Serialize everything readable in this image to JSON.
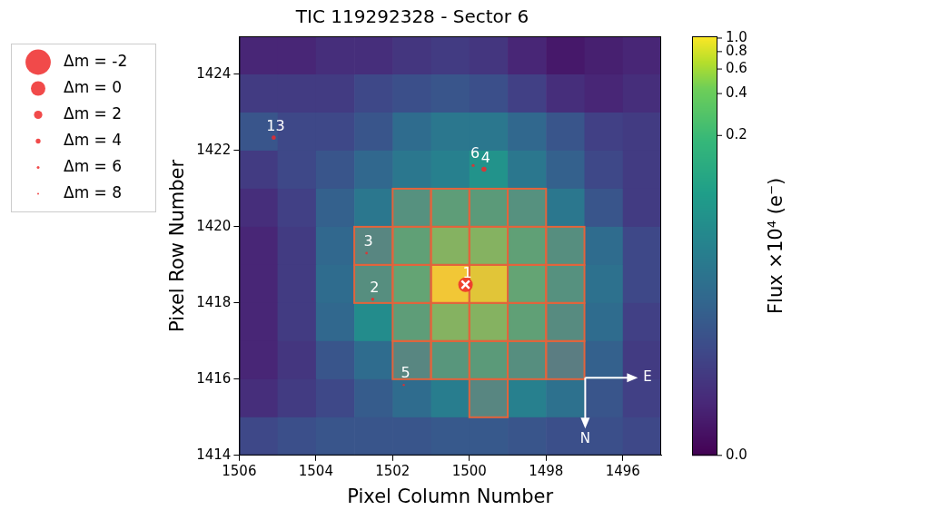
{
  "chart_data": {
    "type": "heatmap",
    "title": "TIC 119292328 - Sector 6",
    "x_label": "Pixel Column Number",
    "y_label": "Pixel Row Number",
    "xlim": [
      1506,
      1495
    ],
    "ylim": [
      1414,
      1425
    ],
    "xticks": [
      1506,
      1504,
      1502,
      1500,
      1498,
      1496
    ],
    "yticks": [
      1414,
      1416,
      1418,
      1420,
      1422,
      1424
    ],
    "grid": false,
    "cells": {
      "columns": [
        1505,
        1504,
        1503,
        1502,
        1501,
        1500,
        1499,
        1498,
        1497,
        1496,
        1495
      ],
      "rows": [
        1424,
        1423,
        1422,
        1421,
        1420,
        1419,
        1418,
        1417,
        1416,
        1415,
        1414
      ],
      "values": [
        [
          0.0013,
          0.0013,
          0.0018,
          0.0018,
          0.0025,
          0.003,
          0.0025,
          0.0013,
          0.0007,
          0.001,
          0.0013
        ],
        [
          0.003,
          0.003,
          0.003,
          0.0046,
          0.0059,
          0.007,
          0.0059,
          0.0036,
          0.0018,
          0.0013,
          0.0018
        ],
        [
          0.007,
          0.0046,
          0.0046,
          0.007,
          0.0149,
          0.0214,
          0.0214,
          0.0128,
          0.007,
          0.0036,
          0.003
        ],
        [
          0.003,
          0.0046,
          0.007,
          0.0128,
          0.0214,
          0.0296,
          0.054,
          0.0214,
          0.0102,
          0.0046,
          0.003
        ],
        [
          0.0018,
          0.0036,
          0.0102,
          0.0214,
          0.0715,
          0.125,
          0.109,
          0.0715,
          0.0214,
          0.007,
          0.003
        ],
        [
          0.0013,
          0.003,
          0.0128,
          0.0437,
          0.144,
          0.354,
          0.354,
          0.144,
          0.062,
          0.0149,
          0.0046
        ],
        [
          0.0013,
          0.003,
          0.0149,
          0.062,
          0.177,
          1.0,
          0.871,
          0.177,
          0.0715,
          0.0172,
          0.0046
        ],
        [
          0.0013,
          0.003,
          0.0128,
          0.0437,
          0.125,
          0.354,
          0.354,
          0.144,
          0.054,
          0.0149,
          0.0036
        ],
        [
          0.0013,
          0.0025,
          0.007,
          0.0149,
          0.0437,
          0.088,
          0.109,
          0.062,
          0.0296,
          0.0102,
          0.003
        ],
        [
          0.0018,
          0.003,
          0.0046,
          0.0088,
          0.0149,
          0.0266,
          0.0437,
          0.0296,
          0.0172,
          0.007,
          0.0036
        ],
        [
          0.0046,
          0.0059,
          0.007,
          0.007,
          0.007,
          0.0081,
          0.0081,
          0.007,
          0.0059,
          0.0059,
          0.0046
        ]
      ]
    },
    "colorbar": {
      "label": "Flux ×10⁴ (e⁻)",
      "range": [
        0,
        1.03
      ],
      "ticks": [
        {
          "value": 0,
          "label": "0.0"
        },
        0.2,
        0.4,
        0.6,
        0.8,
        {
          "value": 1,
          "label": "1.0"
        }
      ]
    },
    "aperture": [
      [
        1501,
        1420
      ],
      [
        1500,
        1420
      ],
      [
        1499,
        1420
      ],
      [
        1498,
        1420
      ],
      [
        1502,
        1419
      ],
      [
        1501,
        1419
      ],
      [
        1500,
        1419
      ],
      [
        1499,
        1419
      ],
      [
        1498,
        1419
      ],
      [
        1497,
        1419
      ],
      [
        1502,
        1418
      ],
      [
        1501,
        1418
      ],
      [
        1500,
        1418
      ],
      [
        1499,
        1418
      ],
      [
        1498,
        1418
      ],
      [
        1497,
        1418
      ],
      [
        1501,
        1417
      ],
      [
        1500,
        1417
      ],
      [
        1499,
        1417
      ],
      [
        1498,
        1417
      ],
      [
        1497,
        1417
      ],
      [
        1501,
        1416
      ],
      [
        1500,
        1416
      ],
      [
        1499,
        1416
      ],
      [
        1498,
        1416
      ],
      [
        1497,
        1416
      ],
      [
        1499,
        1415
      ]
    ],
    "stars": {
      "color": "#ee2a2a",
      "labels": [
        "1",
        "2",
        "3",
        "4",
        "5",
        "6",
        "13"
      ],
      "x": [
        1500.1,
        1502.52,
        1502.68,
        1499.62,
        1501.71,
        1499.9,
        1505.1
      ],
      "y": [
        1418.48,
        1418.1,
        1419.31,
        1421.51,
        1415.85,
        1421.61,
        1422.34
      ],
      "dm": [
        0,
        5.5,
        6.5,
        3.8,
        6.8,
        5.8,
        4.5
      ]
    },
    "target": {
      "x": 1500.1,
      "y": 1418.48,
      "marker": "x",
      "color": "#ffffff"
    },
    "legend": "upper left",
    "legend_entries": [
      {
        "dm": -2,
        "label": "Δm = -2"
      },
      {
        "dm": 0,
        "label": "Δm = 0"
      },
      {
        "dm": 2,
        "label": "Δm = 2"
      },
      {
        "dm": 4,
        "label": "Δm = 4"
      },
      {
        "dm": 6,
        "label": "Δm = 6"
      },
      {
        "dm": 8,
        "label": "Δm = 8"
      }
    ],
    "compass": {
      "east": "E",
      "north": "N"
    }
  }
}
